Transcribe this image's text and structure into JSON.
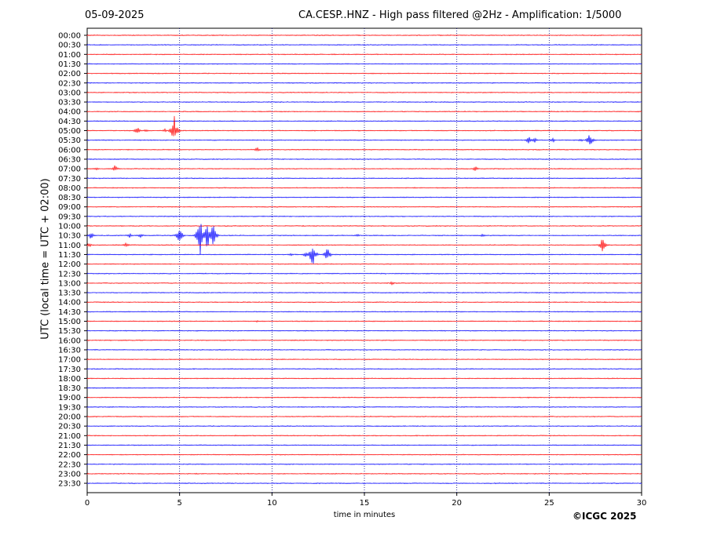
{
  "header": {
    "date": "05-09-2025",
    "station_title": "CA.CESP..HNZ - High pass filtered @2Hz - Amplification: 1/5000"
  },
  "footer": {
    "copyright": "©ICGC 2025"
  },
  "colors": {
    "red_trace": "#ff0000",
    "blue_trace": "#0000ff",
    "grid": "#000080",
    "frame": "#000000"
  },
  "chart_data": {
    "type": "line",
    "title": "CA.CESP..HNZ - High pass filtered @2Hz - Amplification: 1/5000",
    "xlabel": "time in minutes",
    "ylabel": "UTC (local time = UTC + 02:00)",
    "xlim": [
      0,
      30
    ],
    "x_ticks": [
      0,
      5,
      10,
      15,
      20,
      25,
      30
    ],
    "grid": "vertical dotted lines at 5-minute intervals",
    "trace_colors_alternate": [
      "red",
      "blue"
    ],
    "rows": [
      "00:00",
      "00:30",
      "01:00",
      "01:30",
      "02:00",
      "02:30",
      "03:00",
      "03:30",
      "04:00",
      "04:30",
      "05:00",
      "05:30",
      "06:00",
      "06:30",
      "07:00",
      "07:30",
      "08:00",
      "08:30",
      "09:00",
      "09:30",
      "10:00",
      "10:30",
      "11:00",
      "11:30",
      "12:00",
      "12:30",
      "13:00",
      "13:30",
      "14:00",
      "14:30",
      "15:00",
      "15:30",
      "16:00",
      "16:30",
      "17:00",
      "17:30",
      "18:00",
      "18:30",
      "19:00",
      "19:30",
      "20:00",
      "20:30",
      "21:00",
      "21:30",
      "22:00",
      "22:30",
      "23:00",
      "23:30"
    ],
    "events": [
      {
        "row": "05:00",
        "minute": 2.7,
        "amplitude": 0.5
      },
      {
        "row": "05:00",
        "minute": 3.2,
        "amplitude": 0.2
      },
      {
        "row": "05:00",
        "minute": 4.2,
        "amplitude": 0.2
      },
      {
        "row": "05:00",
        "minute": 4.7,
        "amplitude": 1.8
      },
      {
        "row": "05:30",
        "minute": 23.9,
        "amplitude": 0.4
      },
      {
        "row": "05:30",
        "minute": 24.2,
        "amplitude": 0.3
      },
      {
        "row": "05:30",
        "minute": 25.2,
        "amplitude": 0.3
      },
      {
        "row": "05:30",
        "minute": 26.7,
        "amplitude": 0.2
      },
      {
        "row": "05:30",
        "minute": 27.2,
        "amplitude": 0.8
      },
      {
        "row": "06:00",
        "minute": 9.2,
        "amplitude": 0.3
      },
      {
        "row": "07:00",
        "minute": 0.5,
        "amplitude": 0.2
      },
      {
        "row": "07:00",
        "minute": 1.5,
        "amplitude": 0.4
      },
      {
        "row": "07:00",
        "minute": 21.0,
        "amplitude": 0.3
      },
      {
        "row": "10:30",
        "minute": 0.2,
        "amplitude": 0.4
      },
      {
        "row": "10:30",
        "minute": 2.3,
        "amplitude": 0.3
      },
      {
        "row": "10:30",
        "minute": 2.9,
        "amplitude": 0.3
      },
      {
        "row": "10:30",
        "minute": 5.0,
        "amplitude": 1.0
      },
      {
        "row": "10:30",
        "minute": 6.1,
        "amplitude": 2.4
      },
      {
        "row": "10:30",
        "minute": 6.5,
        "amplitude": 1.8
      },
      {
        "row": "10:30",
        "minute": 6.8,
        "amplitude": 1.6
      },
      {
        "row": "10:30",
        "minute": 14.6,
        "amplitude": 0.2
      },
      {
        "row": "10:30",
        "minute": 21.4,
        "amplitude": 0.2
      },
      {
        "row": "11:00",
        "minute": 0.1,
        "amplitude": 0.3
      },
      {
        "row": "11:00",
        "minute": 2.1,
        "amplitude": 0.3
      },
      {
        "row": "11:00",
        "minute": 27.9,
        "amplitude": 1.0
      },
      {
        "row": "11:30",
        "minute": 11.0,
        "amplitude": 0.2
      },
      {
        "row": "11:30",
        "minute": 11.8,
        "amplitude": 0.3
      },
      {
        "row": "11:30",
        "minute": 12.2,
        "amplitude": 1.6
      },
      {
        "row": "11:30",
        "minute": 13.0,
        "amplitude": 0.8
      },
      {
        "row": "13:00",
        "minute": 16.5,
        "amplitude": 0.2
      },
      {
        "row": "15:00",
        "minute": 9.2,
        "amplitude": 0.15
      }
    ]
  }
}
